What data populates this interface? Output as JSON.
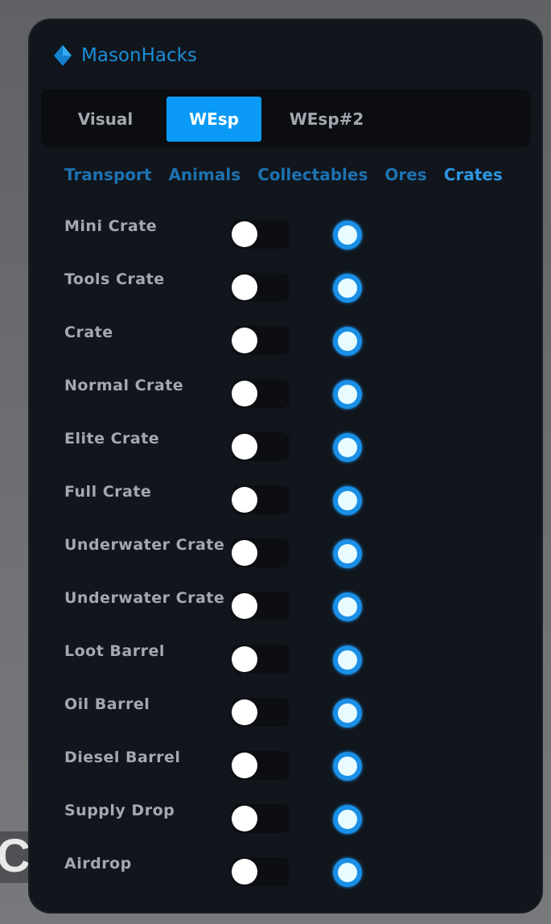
{
  "background": {
    "text": "CT"
  },
  "app": {
    "title": "MasonHacks",
    "accent": "#0b9bf7"
  },
  "tabs": [
    {
      "label": "Visual",
      "active": false
    },
    {
      "label": "WEsp",
      "active": true
    },
    {
      "label": "WEsp#2",
      "active": false
    }
  ],
  "subtabs": [
    {
      "label": "Transport"
    },
    {
      "label": "Animals"
    },
    {
      "label": "Collectables"
    },
    {
      "label": "Ores"
    },
    {
      "label": "Crates",
      "active": true
    }
  ],
  "items": [
    {
      "label": "Mini Crate",
      "toggle": false,
      "radio": true
    },
    {
      "label": "Tools Crate",
      "toggle": false,
      "radio": true
    },
    {
      "label": "Crate",
      "toggle": false,
      "radio": true
    },
    {
      "label": "Normal Crate",
      "toggle": false,
      "radio": true
    },
    {
      "label": "Elite Crate",
      "toggle": false,
      "radio": true
    },
    {
      "label": "Full Crate",
      "toggle": false,
      "radio": true
    },
    {
      "label": "Underwater Crate",
      "toggle": false,
      "radio": true
    },
    {
      "label": "Underwater Crate",
      "toggle": false,
      "radio": true
    },
    {
      "label": "Loot Barrel",
      "toggle": false,
      "radio": true
    },
    {
      "label": "Oil Barrel",
      "toggle": false,
      "radio": true
    },
    {
      "label": "Diesel Barrel",
      "toggle": false,
      "radio": true
    },
    {
      "label": "Supply Drop",
      "toggle": false,
      "radio": true
    },
    {
      "label": "Airdrop",
      "toggle": false,
      "radio": true
    }
  ]
}
